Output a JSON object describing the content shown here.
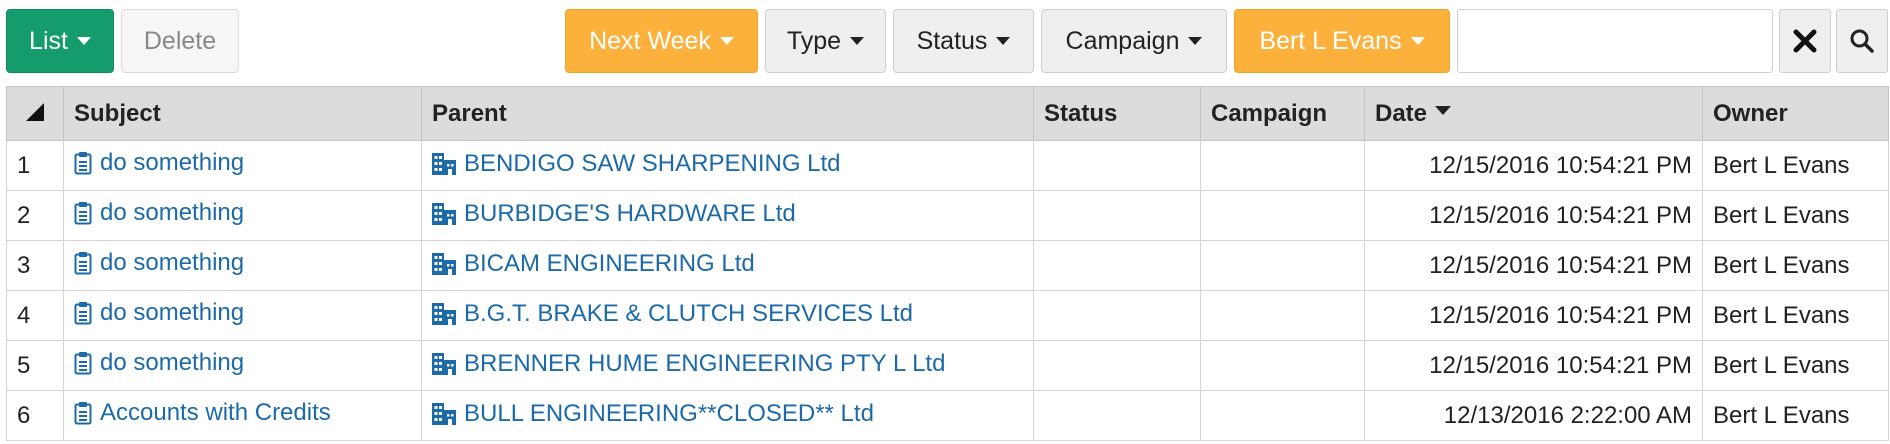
{
  "toolbar": {
    "list_label": "List",
    "delete_label": "Delete",
    "filters": {
      "date": "Next Week",
      "type": "Type",
      "status": "Status",
      "campaign": "Campaign",
      "owner": "Bert L Evans"
    },
    "search": {
      "value": "",
      "placeholder": ""
    },
    "clear_icon": "close-icon",
    "search_icon": "search-icon"
  },
  "colors": {
    "primary_green": "#149c6d",
    "filter_orange": "#fbb13c",
    "link_blue": "#1c6aa8",
    "header_gray": "#dcdcdc"
  },
  "table": {
    "columns": [
      "",
      "Subject",
      "Parent",
      "Status",
      "Campaign",
      "Date",
      "Owner"
    ],
    "sort": {
      "column": "Date",
      "direction": "desc"
    },
    "rows": [
      {
        "num": "1",
        "subject": "do something",
        "parent": "BENDIGO SAW SHARPENING Ltd",
        "status": "",
        "campaign": "",
        "date": "12/15/2016 10:54:21 PM",
        "owner": "Bert L Evans"
      },
      {
        "num": "2",
        "subject": "do something",
        "parent": "BURBIDGE'S HARDWARE Ltd",
        "status": "",
        "campaign": "",
        "date": "12/15/2016 10:54:21 PM",
        "owner": "Bert L Evans"
      },
      {
        "num": "3",
        "subject": "do something",
        "parent": "BICAM ENGINEERING Ltd",
        "status": "",
        "campaign": "",
        "date": "12/15/2016 10:54:21 PM",
        "owner": "Bert L Evans"
      },
      {
        "num": "4",
        "subject": "do something",
        "parent": "B.G.T. BRAKE & CLUTCH SERVICES Ltd",
        "status": "",
        "campaign": "",
        "date": "12/15/2016 10:54:21 PM",
        "owner": "Bert L Evans"
      },
      {
        "num": "5",
        "subject": "do something",
        "parent": "BRENNER HUME ENGINEERING PTY L Ltd",
        "status": "",
        "campaign": "",
        "date": "12/15/2016 10:54:21 PM",
        "owner": "Bert L Evans"
      },
      {
        "num": "6",
        "subject": "Accounts with Credits",
        "parent": "BULL ENGINEERING**CLOSED** Ltd",
        "status": "",
        "campaign": "",
        "date": "12/13/2016 2:22:00 AM",
        "owner": "Bert L Evans"
      }
    ],
    "subject_icon": "clipboard-icon",
    "parent_icon": "building-icon"
  }
}
